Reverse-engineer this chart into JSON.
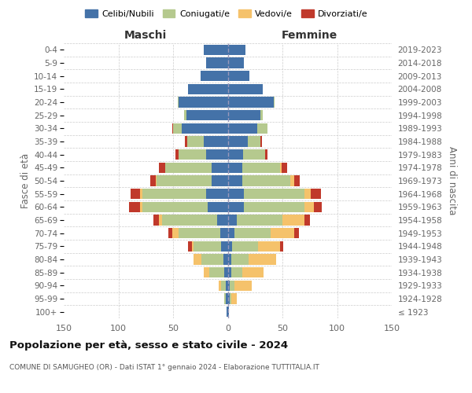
{
  "age_groups": [
    "100+",
    "95-99",
    "90-94",
    "85-89",
    "80-84",
    "75-79",
    "70-74",
    "65-69",
    "60-64",
    "55-59",
    "50-54",
    "45-49",
    "40-44",
    "35-39",
    "30-34",
    "25-29",
    "20-24",
    "15-19",
    "10-14",
    "5-9",
    "0-4"
  ],
  "birth_years": [
    "≤ 1923",
    "1924-1928",
    "1929-1933",
    "1934-1938",
    "1939-1943",
    "1944-1948",
    "1949-1953",
    "1954-1958",
    "1959-1963",
    "1964-1968",
    "1969-1973",
    "1974-1978",
    "1979-1983",
    "1984-1988",
    "1989-1993",
    "1994-1998",
    "1999-2003",
    "2004-2008",
    "2009-2013",
    "2014-2018",
    "2019-2023"
  ],
  "male": {
    "celibi": [
      1,
      2,
      2,
      3,
      4,
      6,
      7,
      10,
      18,
      20,
      15,
      15,
      20,
      22,
      42,
      38,
      45,
      36,
      25,
      20,
      22
    ],
    "coniugati": [
      0,
      1,
      4,
      14,
      20,
      25,
      38,
      50,
      60,
      58,
      50,
      42,
      25,
      15,
      8,
      2,
      1,
      0,
      0,
      0,
      0
    ],
    "vedovi": [
      0,
      0,
      2,
      5,
      7,
      2,
      6,
      3,
      2,
      2,
      1,
      0,
      0,
      0,
      0,
      0,
      0,
      0,
      0,
      0,
      0
    ],
    "divorziati": [
      0,
      0,
      0,
      0,
      0,
      3,
      3,
      5,
      10,
      9,
      5,
      6,
      3,
      2,
      1,
      0,
      0,
      0,
      0,
      0,
      0
    ]
  },
  "female": {
    "nubili": [
      1,
      2,
      2,
      3,
      3,
      4,
      6,
      8,
      15,
      15,
      13,
      13,
      14,
      18,
      27,
      30,
      42,
      32,
      20,
      15,
      16
    ],
    "coniugate": [
      0,
      1,
      4,
      10,
      16,
      24,
      33,
      42,
      55,
      55,
      44,
      35,
      20,
      12,
      9,
      2,
      1,
      0,
      0,
      0,
      0
    ],
    "vedove": [
      0,
      5,
      16,
      20,
      25,
      20,
      22,
      20,
      9,
      6,
      4,
      1,
      0,
      0,
      0,
      0,
      0,
      0,
      0,
      0,
      0
    ],
    "divorziate": [
      0,
      0,
      0,
      0,
      0,
      3,
      4,
      5,
      7,
      9,
      5,
      5,
      2,
      1,
      0,
      0,
      0,
      0,
      0,
      0,
      0
    ]
  },
  "colors": {
    "celibi": "#4472a8",
    "coniugati": "#b5c98e",
    "vedovi": "#f5c26b",
    "divorziati": "#c0392b"
  },
  "xlim": 150,
  "title": "Popolazione per età, sesso e stato civile - 2024",
  "subtitle": "COMUNE DI SAMUGHEO (OR) - Dati ISTAT 1° gennaio 2024 - Elaborazione TUTTITALIA.IT",
  "ylabel_left": "Fasce di età",
  "ylabel_right": "Anni di nascita",
  "xlabel_male": "Maschi",
  "xlabel_female": "Femmine",
  "bg_color": "#ffffff",
  "grid_color": "#cccccc",
  "legend_labels": [
    "Celibi/Nubili",
    "Coniugati/e",
    "Vedovi/e",
    "Divorziati/e"
  ]
}
